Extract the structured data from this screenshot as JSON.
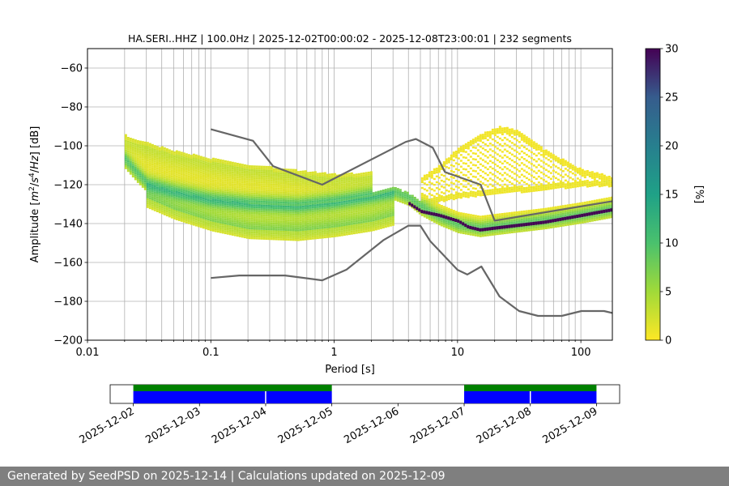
{
  "chart_data": {
    "type": "heatmap",
    "title": "HA.SERI..HHZ | 100.0Hz | 2025-12-02T00:00:02 - 2025-12-08T23:00:01 | 232 segments",
    "xlabel": "Period [s]",
    "ylabel_parts": [
      "Amplitude [",
      "m",
      "2",
      "/",
      "s",
      "4",
      "/",
      "Hz",
      "] [dB]"
    ],
    "x_scale": "log",
    "xlim": [
      0.01,
      180
    ],
    "ylim": [
      -200,
      -50
    ],
    "x_ticks": [
      {
        "v": 0.01,
        "label": "0.01"
      },
      {
        "v": 0.1,
        "label": "0.1"
      },
      {
        "v": 1,
        "label": "1"
      },
      {
        "v": 10,
        "label": "10"
      },
      {
        "v": 100,
        "label": "100"
      }
    ],
    "y_ticks": [
      {
        "v": -60,
        "label": "−60"
      },
      {
        "v": -80,
        "label": "−80"
      },
      {
        "v": -100,
        "label": "−100"
      },
      {
        "v": -120,
        "label": "−120"
      },
      {
        "v": -140,
        "label": "−140"
      },
      {
        "v": -160,
        "label": "−160"
      },
      {
        "v": -180,
        "label": "−180"
      },
      {
        "v": -200,
        "label": "−200"
      }
    ],
    "grid": true,
    "colorbar": {
      "label": "[%]",
      "range": [
        0,
        30
      ],
      "ticks": [
        {
          "v": 0,
          "label": "0"
        },
        {
          "v": 5,
          "label": "5"
        },
        {
          "v": 10,
          "label": "10"
        },
        {
          "v": 15,
          "label": "15"
        },
        {
          "v": 20,
          "label": "20"
        },
        {
          "v": 25,
          "label": "25"
        },
        {
          "v": 30,
          "label": "30"
        }
      ],
      "colormap": "viridis_r"
    },
    "nhnm": [
      [
        0.1,
        -91.5
      ],
      [
        0.22,
        -97.4
      ],
      [
        0.32,
        -110.5
      ],
      [
        0.8,
        -120
      ],
      [
        3.8,
        -98
      ],
      [
        4.6,
        -96.5
      ],
      [
        6.3,
        -101
      ],
      [
        7.9,
        -113.5
      ],
      [
        15.4,
        -120
      ],
      [
        20,
        -138.5
      ],
      [
        180,
        -128.5
      ]
    ],
    "nlnm": [
      [
        0.1,
        -168
      ],
      [
        0.17,
        -166.7
      ],
      [
        0.4,
        -166.7
      ],
      [
        0.8,
        -169.2
      ],
      [
        1.26,
        -163.7
      ],
      [
        2.5,
        -148.6
      ],
      [
        4.0,
        -141.1
      ],
      [
        5.0,
        -141.1
      ],
      [
        6.0,
        -149
      ],
      [
        10,
        -163.8
      ],
      [
        12,
        -166.2
      ],
      [
        15.6,
        -162.1
      ],
      [
        21.9,
        -177.5
      ],
      [
        31.6,
        -185
      ],
      [
        45,
        -187.5
      ],
      [
        70,
        -187.5
      ],
      [
        101,
        -185
      ],
      [
        154,
        -185
      ],
      [
        180,
        -186
      ]
    ],
    "density_bands": [
      {
        "label": "primary",
        "points": [
          [
            0.02,
            -108
          ],
          [
            0.025,
            -115
          ],
          [
            0.03,
            -120
          ],
          [
            0.05,
            -124
          ],
          [
            0.1,
            -128
          ],
          [
            0.2,
            -130
          ],
          [
            0.5,
            -131
          ],
          [
            1,
            -129
          ],
          [
            2,
            -126
          ],
          [
            3,
            -124
          ],
          [
            4,
            -127
          ],
          [
            5,
            -132
          ],
          [
            7,
            -137
          ],
          [
            10,
            -141
          ],
          [
            15,
            -143
          ],
          [
            20,
            -142
          ],
          [
            50,
            -139
          ],
          [
            100,
            -136
          ],
          [
            180,
            -133
          ]
        ]
      },
      {
        "label": "lower",
        "points": [
          [
            0.03,
            -128
          ],
          [
            0.05,
            -134
          ],
          [
            0.1,
            -140
          ],
          [
            0.2,
            -144
          ],
          [
            0.5,
            -145
          ],
          [
            1,
            -143
          ],
          [
            2,
            -140
          ],
          [
            3,
            -137
          ]
        ]
      },
      {
        "label": "upper",
        "points": [
          [
            0.02,
            -97
          ],
          [
            0.03,
            -101
          ],
          [
            0.05,
            -105
          ],
          [
            0.1,
            -109
          ],
          [
            0.2,
            -112
          ],
          [
            0.5,
            -115
          ],
          [
            1,
            -117
          ],
          [
            2,
            -116
          ]
        ]
      },
      {
        "label": "microseism_upper",
        "points": [
          [
            5,
            -118
          ],
          [
            7,
            -112
          ],
          [
            10,
            -103
          ],
          [
            15,
            -96
          ],
          [
            22,
            -92
          ],
          [
            30,
            -94
          ],
          [
            50,
            -104
          ],
          [
            100,
            -114
          ],
          [
            180,
            -118
          ]
        ]
      },
      {
        "label": "microseism_lower",
        "points": [
          [
            5,
            -130
          ],
          [
            10,
            -126
          ],
          [
            20,
            -124
          ],
          [
            50,
            -122
          ],
          [
            100,
            -120
          ],
          [
            180,
            -120
          ]
        ]
      }
    ],
    "mode": {
      "points": [
        [
          4,
          -130
        ],
        [
          5,
          -134
        ],
        [
          7,
          -136
        ],
        [
          10,
          -139
        ],
        [
          12,
          -142
        ],
        [
          15,
          -143.5
        ],
        [
          20,
          -142.5
        ],
        [
          50,
          -139.5
        ],
        [
          100,
          -136
        ],
        [
          180,
          -133
        ]
      ],
      "color": "#440154"
    }
  },
  "timeline": {
    "dates": [
      "2025-12-02",
      "2025-12-03",
      "2025-12-04",
      "2025-12-05",
      "2025-12-06",
      "2025-12-07",
      "2025-12-08",
      "2025-12-09"
    ],
    "range_days": [
      -0.35,
      7.35
    ],
    "available_segments": [
      [
        0,
        2.0
      ],
      [
        2.0,
        3.0
      ],
      [
        5.0,
        6.0
      ],
      [
        6.0,
        7.0
      ]
    ],
    "gap_marks": [
      2.0,
      6.0
    ],
    "green_ranges": [
      [
        0,
        3.0
      ],
      [
        5.0,
        7.0
      ]
    ],
    "colors": {
      "available": "#0000ff",
      "green": "#008000"
    }
  },
  "footer": {
    "text": "Generated by SeedPSD on 2025-12-14 | Calculations updated on 2025-12-09"
  }
}
